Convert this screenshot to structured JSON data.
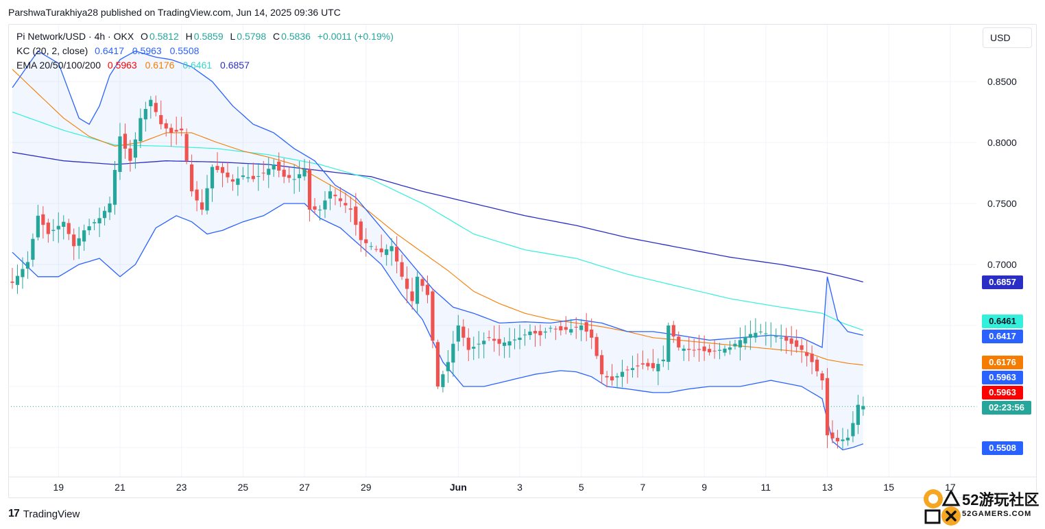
{
  "header": {
    "publisher_line": "ParshwaTurakhiya28 published on TradingView.com, Jun 14, 2025 09:36 UTC"
  },
  "legend": {
    "symbol": "Pi Network/USD · 4h · OKX",
    "open_label": "O",
    "open": "0.5812",
    "high_label": "H",
    "high": "0.5859",
    "low_label": "L",
    "low": "0.5798",
    "close_label": "C",
    "close": "0.5836",
    "change": "+0.0011 (+0.19%)",
    "kc_label": "KC (20, 2, close)",
    "kc_upper": "0.6417",
    "kc_mid": "0.5963",
    "kc_lower": "0.5508",
    "ema_label": "EMA 20/50/100/200",
    "ema20": "0.5963",
    "ema50": "0.6176",
    "ema100": "0.6461",
    "ema200": "0.6857"
  },
  "currency": "USD",
  "price_tags": [
    {
      "value": "0.6857",
      "color": "#2a2ec5",
      "text_color": "#ffffff"
    },
    {
      "value": "0.6461",
      "color": "#33f0dc",
      "text_color": "#131722"
    },
    {
      "value": "0.6417",
      "color": "#2962ff",
      "text_color": "#ffffff"
    },
    {
      "value": "0.6176",
      "color": "#f57c00",
      "text_color": "#ffffff"
    },
    {
      "value": "0.5963",
      "color": "#2962ff",
      "text_color": "#ffffff"
    },
    {
      "value": "0.5963",
      "color": "#ff0000",
      "text_color": "#ffffff"
    },
    {
      "value": "02:23:56",
      "color": "#26a69a",
      "text_color": "#ffffff",
      "price": 0.5836
    },
    {
      "value": "0.5508",
      "color": "#2962ff",
      "text_color": "#ffffff"
    }
  ],
  "footer": {
    "brand": "TradingView"
  },
  "watermark": {
    "text": "52游玩社区",
    "sub": "52GAMERS.COM"
  },
  "chart_data": {
    "type": "candlestick",
    "timeframe": "4h",
    "y_ticks": [
      "0.8500",
      "0.8000",
      "0.7500",
      "0.7000"
    ],
    "ylim": [
      0.53,
      0.885
    ],
    "x_ticks": [
      {
        "label": "19",
        "i": 9
      },
      {
        "label": "21",
        "i": 21
      },
      {
        "label": "23",
        "i": 33
      },
      {
        "label": "25",
        "i": 45
      },
      {
        "label": "27",
        "i": 57
      },
      {
        "label": "29",
        "i": 69
      },
      {
        "label": "Jun",
        "i": 87
      },
      {
        "label": "3",
        "i": 99
      },
      {
        "label": "5",
        "i": 111
      },
      {
        "label": "7",
        "i": 123
      },
      {
        "label": "9",
        "i": 135
      },
      {
        "label": "11",
        "i": 147
      },
      {
        "label": "13",
        "i": 159
      },
      {
        "label": "15",
        "i": 171
      },
      {
        "label": "17",
        "i": 183
      }
    ],
    "n_bars": 167,
    "colors": {
      "up": "#26a69a",
      "down": "#ef5350",
      "kc": "#2962ff",
      "kc_fill": "#2962ff",
      "ema20": "#ff0000",
      "ema50": "#f57c00",
      "ema100": "#33f0dc",
      "ema200": "#2a2ec5"
    },
    "close_anchors": [
      [
        0,
        0.685
      ],
      [
        3,
        0.702
      ],
      [
        5,
        0.74
      ],
      [
        7,
        0.725
      ],
      [
        10,
        0.735
      ],
      [
        12,
        0.715
      ],
      [
        14,
        0.728
      ],
      [
        17,
        0.738
      ],
      [
        19,
        0.75
      ],
      [
        21,
        0.805
      ],
      [
        23,
        0.785
      ],
      [
        25,
        0.82
      ],
      [
        27,
        0.835
      ],
      [
        29,
        0.815
      ],
      [
        31,
        0.808
      ],
      [
        33,
        0.81
      ],
      [
        35,
        0.76
      ],
      [
        37,
        0.745
      ],
      [
        39,
        0.78
      ],
      [
        41,
        0.775
      ],
      [
        43,
        0.768
      ],
      [
        45,
        0.773
      ],
      [
        47,
        0.77
      ],
      [
        49,
        0.775
      ],
      [
        51,
        0.782
      ],
      [
        53,
        0.772
      ],
      [
        55,
        0.77
      ],
      [
        57,
        0.778
      ],
      [
        58,
        0.745
      ],
      [
        60,
        0.745
      ],
      [
        62,
        0.76
      ],
      [
        64,
        0.752
      ],
      [
        66,
        0.745
      ],
      [
        68,
        0.72
      ],
      [
        70,
        0.715
      ],
      [
        72,
        0.71
      ],
      [
        74,
        0.715
      ],
      [
        76,
        0.69
      ],
      [
        78,
        0.67
      ],
      [
        79,
        0.69
      ],
      [
        81,
        0.675
      ],
      [
        83,
        0.6
      ],
      [
        85,
        0.62
      ],
      [
        87,
        0.65
      ],
      [
        89,
        0.63
      ],
      [
        91,
        0.635
      ],
      [
        93,
        0.64
      ],
      [
        95,
        0.635
      ],
      [
        97,
        0.637
      ],
      [
        99,
        0.64
      ],
      [
        101,
        0.645
      ],
      [
        103,
        0.642
      ],
      [
        105,
        0.648
      ],
      [
        107,
        0.646
      ],
      [
        109,
        0.647
      ],
      [
        111,
        0.65
      ],
      [
        113,
        0.64
      ],
      [
        115,
        0.61
      ],
      [
        117,
        0.605
      ],
      [
        119,
        0.612
      ],
      [
        121,
        0.615
      ],
      [
        123,
        0.618
      ],
      [
        125,
        0.615
      ],
      [
        127,
        0.622
      ],
      [
        128,
        0.65
      ],
      [
        130,
        0.632
      ],
      [
        132,
        0.63
      ],
      [
        134,
        0.63
      ],
      [
        136,
        0.628
      ],
      [
        138,
        0.63
      ],
      [
        140,
        0.632
      ],
      [
        142,
        0.638
      ],
      [
        144,
        0.643
      ],
      [
        146,
        0.645
      ],
      [
        148,
        0.642
      ],
      [
        150,
        0.64
      ],
      [
        152,
        0.635
      ],
      [
        154,
        0.63
      ],
      [
        156,
        0.62
      ],
      [
        158,
        0.605
      ],
      [
        159,
        0.56
      ],
      [
        161,
        0.555
      ],
      [
        163,
        0.558
      ],
      [
        164,
        0.57
      ],
      [
        165,
        0.585
      ],
      [
        166,
        0.584
      ]
    ],
    "kc_upper_anchors": [
      [
        0,
        0.845
      ],
      [
        5,
        0.875
      ],
      [
        9,
        0.865
      ],
      [
        13,
        0.82
      ],
      [
        15,
        0.815
      ],
      [
        17,
        0.83
      ],
      [
        19,
        0.855
      ],
      [
        21,
        0.868
      ],
      [
        24,
        0.875
      ],
      [
        28,
        0.87
      ],
      [
        31,
        0.868
      ],
      [
        35,
        0.862
      ],
      [
        39,
        0.85
      ],
      [
        43,
        0.83
      ],
      [
        47,
        0.815
      ],
      [
        51,
        0.808
      ],
      [
        55,
        0.795
      ],
      [
        59,
        0.785
      ],
      [
        63,
        0.765
      ],
      [
        67,
        0.755
      ],
      [
        70,
        0.74
      ],
      [
        74,
        0.72
      ],
      [
        78,
        0.7
      ],
      [
        82,
        0.68
      ],
      [
        86,
        0.665
      ],
      [
        90,
        0.66
      ],
      [
        95,
        0.652
      ],
      [
        100,
        0.653
      ],
      [
        105,
        0.652
      ],
      [
        110,
        0.655
      ],
      [
        115,
        0.652
      ],
      [
        120,
        0.645
      ],
      [
        125,
        0.645
      ],
      [
        130,
        0.642
      ],
      [
        136,
        0.638
      ],
      [
        142,
        0.64
      ],
      [
        148,
        0.642
      ],
      [
        154,
        0.64
      ],
      [
        158,
        0.632
      ],
      [
        159,
        0.69
      ],
      [
        161,
        0.655
      ],
      [
        163,
        0.645
      ],
      [
        166,
        0.642
      ]
    ],
    "kc_mid_anchors": [
      [
        0,
        0.765
      ],
      [
        5,
        0.74
      ],
      [
        9,
        0.725
      ],
      [
        13,
        0.715
      ],
      [
        17,
        0.735
      ],
      [
        21,
        0.76
      ],
      [
        25,
        0.782
      ],
      [
        29,
        0.79
      ],
      [
        33,
        0.79
      ],
      [
        37,
        0.785
      ],
      [
        41,
        0.778
      ],
      [
        45,
        0.773
      ],
      [
        49,
        0.772
      ],
      [
        53,
        0.768
      ],
      [
        57,
        0.765
      ],
      [
        61,
        0.75
      ],
      [
        65,
        0.738
      ],
      [
        69,
        0.728
      ],
      [
        73,
        0.71
      ],
      [
        77,
        0.69
      ],
      [
        81,
        0.668
      ],
      [
        85,
        0.645
      ],
      [
        89,
        0.63
      ],
      [
        95,
        0.627
      ],
      [
        100,
        0.627
      ],
      [
        105,
        0.63
      ],
      [
        110,
        0.63
      ],
      [
        115,
        0.625
      ],
      [
        120,
        0.622
      ],
      [
        125,
        0.618
      ],
      [
        130,
        0.618
      ],
      [
        136,
        0.617
      ],
      [
        142,
        0.618
      ],
      [
        148,
        0.622
      ],
      [
        154,
        0.618
      ],
      [
        158,
        0.61
      ],
      [
        160,
        0.6
      ],
      [
        163,
        0.598
      ],
      [
        166,
        0.596
      ]
    ],
    "kc_lower_anchors": [
      [
        0,
        0.71
      ],
      [
        5,
        0.69
      ],
      [
        9,
        0.69
      ],
      [
        13,
        0.7
      ],
      [
        17,
        0.705
      ],
      [
        21,
        0.69
      ],
      [
        24,
        0.7
      ],
      [
        28,
        0.73
      ],
      [
        32,
        0.74
      ],
      [
        35,
        0.735
      ],
      [
        38,
        0.725
      ],
      [
        41,
        0.728
      ],
      [
        45,
        0.735
      ],
      [
        49,
        0.74
      ],
      [
        53,
        0.75
      ],
      [
        57,
        0.75
      ],
      [
        60,
        0.738
      ],
      [
        64,
        0.73
      ],
      [
        68,
        0.715
      ],
      [
        72,
        0.7
      ],
      [
        76,
        0.675
      ],
      [
        80,
        0.655
      ],
      [
        84,
        0.62
      ],
      [
        88,
        0.6
      ],
      [
        92,
        0.6
      ],
      [
        97,
        0.605
      ],
      [
        102,
        0.61
      ],
      [
        107,
        0.613
      ],
      [
        110,
        0.612
      ],
      [
        113,
        0.608
      ],
      [
        116,
        0.6
      ],
      [
        120,
        0.598
      ],
      [
        125,
        0.595
      ],
      [
        128,
        0.595
      ],
      [
        132,
        0.598
      ],
      [
        136,
        0.6
      ],
      [
        142,
        0.6
      ],
      [
        148,
        0.605
      ],
      [
        154,
        0.6
      ],
      [
        158,
        0.59
      ],
      [
        160,
        0.555
      ],
      [
        162,
        0.548
      ],
      [
        164,
        0.55
      ],
      [
        166,
        0.553
      ]
    ],
    "ema20_anchors": [
      [
        0,
        0.765
      ],
      [
        10,
        0.725
      ],
      [
        18,
        0.73
      ],
      [
        23,
        0.76
      ],
      [
        28,
        0.785
      ],
      [
        33,
        0.79
      ],
      [
        40,
        0.78
      ],
      [
        47,
        0.772
      ],
      [
        55,
        0.77
      ],
      [
        62,
        0.755
      ],
      [
        70,
        0.728
      ],
      [
        78,
        0.7
      ],
      [
        85,
        0.65
      ],
      [
        92,
        0.63
      ],
      [
        100,
        0.628
      ],
      [
        110,
        0.632
      ],
      [
        116,
        0.622
      ],
      [
        124,
        0.617
      ],
      [
        132,
        0.62
      ],
      [
        142,
        0.622
      ],
      [
        150,
        0.628
      ],
      [
        156,
        0.62
      ],
      [
        159,
        0.604
      ],
      [
        163,
        0.598
      ],
      [
        166,
        0.596
      ]
    ],
    "ema50_anchors": [
      [
        0,
        0.86
      ],
      [
        5,
        0.84
      ],
      [
        10,
        0.82
      ],
      [
        15,
        0.805
      ],
      [
        20,
        0.797
      ],
      [
        25,
        0.8
      ],
      [
        30,
        0.808
      ],
      [
        35,
        0.808
      ],
      [
        40,
        0.8
      ],
      [
        45,
        0.793
      ],
      [
        50,
        0.788
      ],
      [
        55,
        0.782
      ],
      [
        60,
        0.77
      ],
      [
        65,
        0.758
      ],
      [
        70,
        0.742
      ],
      [
        75,
        0.725
      ],
      [
        80,
        0.71
      ],
      [
        85,
        0.695
      ],
      [
        90,
        0.678
      ],
      [
        95,
        0.668
      ],
      [
        100,
        0.66
      ],
      [
        105,
        0.655
      ],
      [
        110,
        0.652
      ],
      [
        115,
        0.649
      ],
      [
        120,
        0.645
      ],
      [
        125,
        0.64
      ],
      [
        130,
        0.638
      ],
      [
        135,
        0.636
      ],
      [
        140,
        0.634
      ],
      [
        145,
        0.632
      ],
      [
        150,
        0.63
      ],
      [
        155,
        0.628
      ],
      [
        159,
        0.622
      ],
      [
        163,
        0.619
      ],
      [
        166,
        0.6176
      ]
    ],
    "ema100_anchors": [
      [
        0,
        0.825
      ],
      [
        10,
        0.81
      ],
      [
        20,
        0.798
      ],
      [
        30,
        0.797
      ],
      [
        40,
        0.795
      ],
      [
        50,
        0.79
      ],
      [
        60,
        0.782
      ],
      [
        70,
        0.77
      ],
      [
        80,
        0.75
      ],
      [
        90,
        0.725
      ],
      [
        100,
        0.712
      ],
      [
        110,
        0.705
      ],
      [
        120,
        0.692
      ],
      [
        130,
        0.682
      ],
      [
        140,
        0.672
      ],
      [
        150,
        0.665
      ],
      [
        158,
        0.66
      ],
      [
        162,
        0.652
      ],
      [
        166,
        0.6461
      ]
    ],
    "ema200_anchors": [
      [
        0,
        0.792
      ],
      [
        10,
        0.785
      ],
      [
        20,
        0.782
      ],
      [
        30,
        0.785
      ],
      [
        40,
        0.784
      ],
      [
        50,
        0.782
      ],
      [
        60,
        0.777
      ],
      [
        70,
        0.772
      ],
      [
        80,
        0.76
      ],
      [
        90,
        0.75
      ],
      [
        100,
        0.74
      ],
      [
        110,
        0.732
      ],
      [
        120,
        0.722
      ],
      [
        130,
        0.714
      ],
      [
        140,
        0.706
      ],
      [
        150,
        0.7
      ],
      [
        158,
        0.694
      ],
      [
        163,
        0.689
      ],
      [
        166,
        0.6857
      ]
    ]
  }
}
